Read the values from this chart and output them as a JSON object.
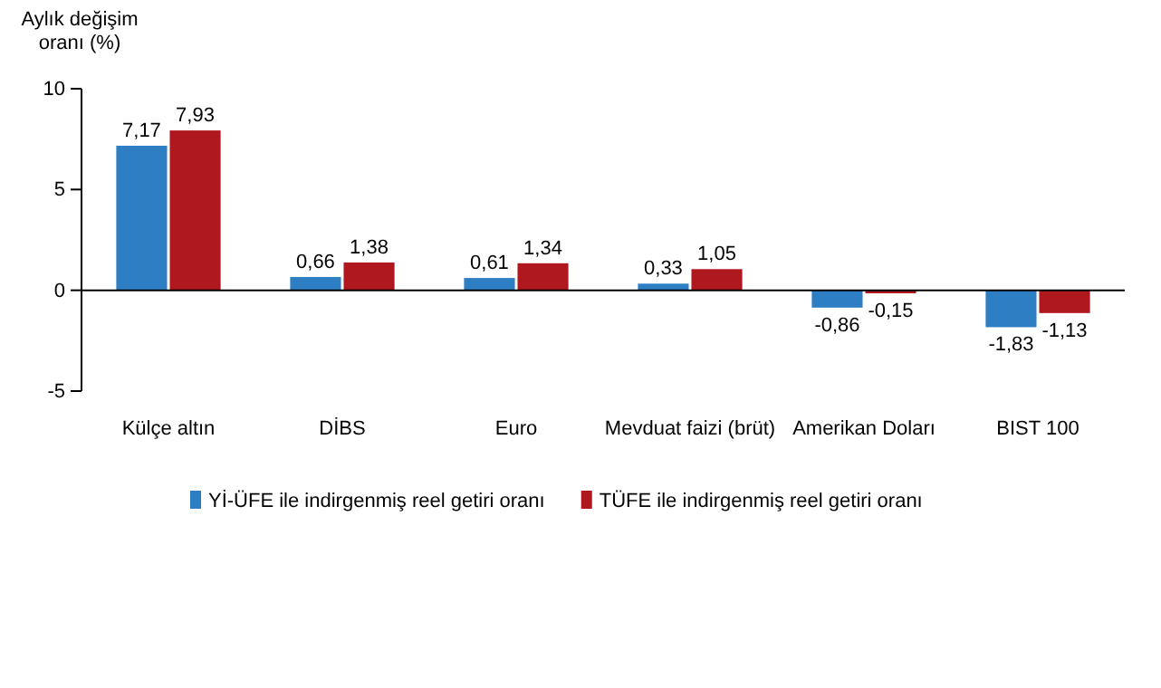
{
  "chart_data": {
    "type": "bar",
    "ylabel": "Aylık değişim oranı (%)",
    "categories": [
      "Külçe altın",
      "DİBS",
      "Euro",
      "Mevduat faizi (brüt)",
      "Amerikan Doları",
      "BIST 100"
    ],
    "series": [
      {
        "name": "Yİ-ÜFE ile indirgenmiş reel getiri oranı",
        "color": "#2e7ec4",
        "values": [
          7.17,
          0.66,
          0.61,
          0.33,
          -0.86,
          -1.83
        ],
        "value_labels": [
          "7,17",
          "0,66",
          "0,61",
          "0,33",
          "-0,86",
          "-1,83"
        ]
      },
      {
        "name": "TÜFE ile indirgenmiş reel getiri oranı",
        "color": "#b01820",
        "values": [
          7.93,
          1.38,
          1.34,
          1.05,
          -0.15,
          -1.13
        ],
        "value_labels": [
          "7,93",
          "1,38",
          "1,34",
          "1,05",
          "-0,15",
          "-1,13"
        ]
      }
    ],
    "ylim": [
      -5,
      10
    ],
    "yticks": [
      -5,
      0,
      5,
      10
    ],
    "legend": "bottom"
  }
}
